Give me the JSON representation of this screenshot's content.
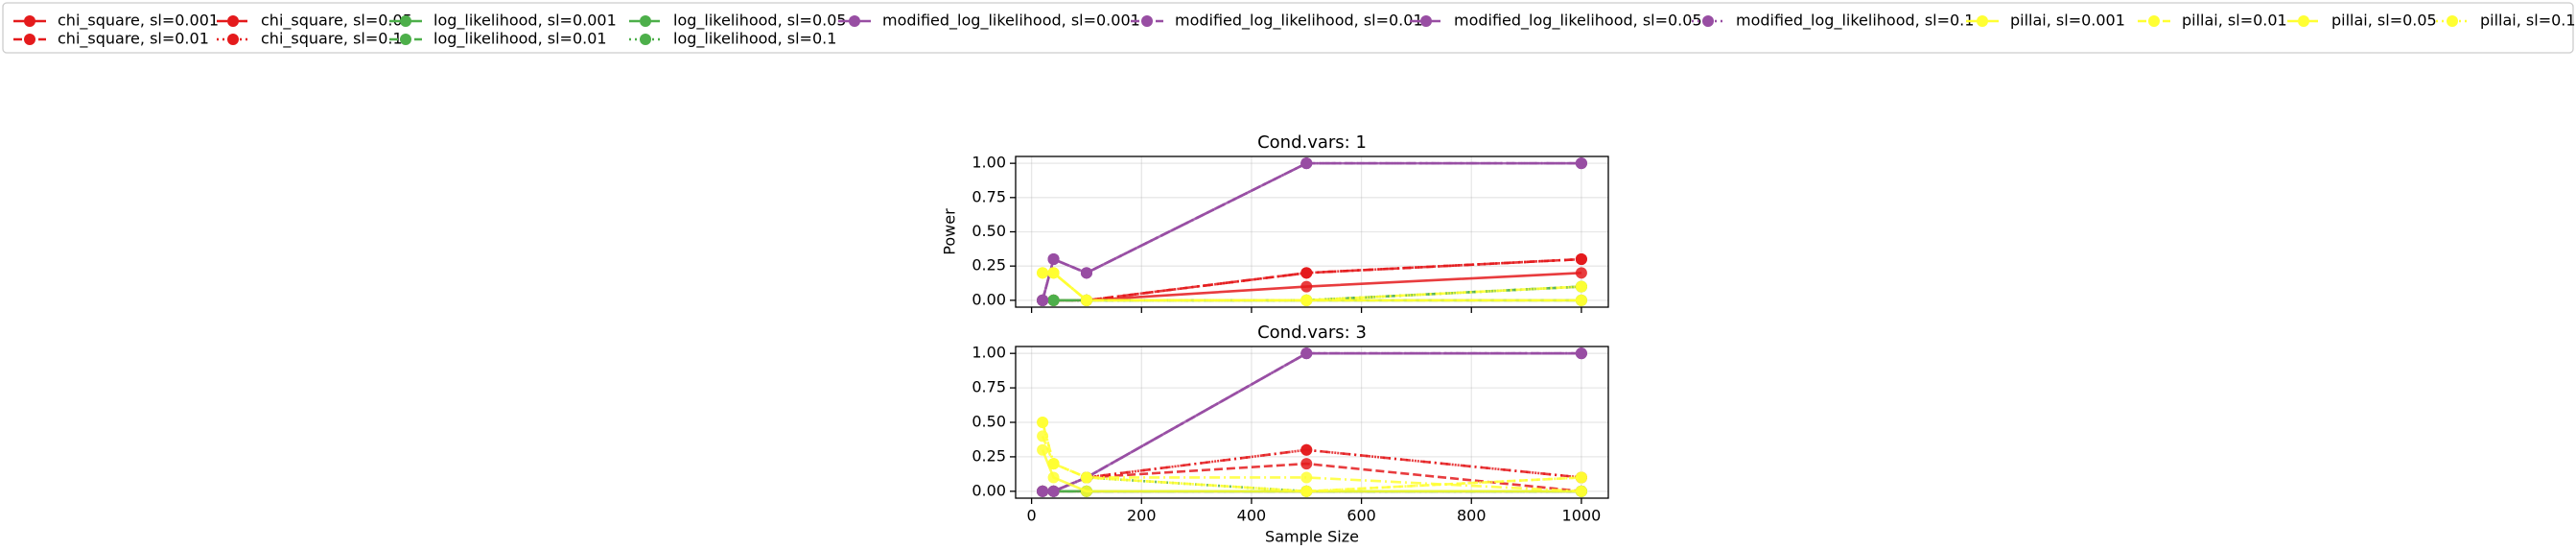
{
  "chart_data": [
    {
      "type": "line",
      "title": "Cond.vars: 1",
      "ylabel": "Power",
      "x": [
        20,
        40,
        100,
        500,
        1000
      ],
      "xlim": [
        -29,
        1049
      ],
      "ylim": [
        -0.05,
        1.05
      ],
      "xticks": [
        0,
        200,
        400,
        600,
        800,
        1000
      ],
      "show_xtick_labels": false,
      "yticks": [
        {
          "value": 0,
          "label": "0.00"
        },
        {
          "value": 0.25,
          "label": "0.25"
        },
        {
          "value": 0.5,
          "label": "0.50"
        },
        {
          "value": 0.75,
          "label": "0.75"
        },
        {
          "value": 1,
          "label": "1.00"
        }
      ],
      "grid": true,
      "series": [
        {
          "name": "chi_square, sl=0.001",
          "color": "#e41a1c",
          "linestyle": "solid",
          "values": [
            0,
            0,
            0,
            0.1,
            0.2
          ]
        },
        {
          "name": "chi_square, sl=0.01",
          "color": "#e41a1c",
          "linestyle": "dashed",
          "values": [
            0,
            0,
            0,
            0.2,
            0.3
          ]
        },
        {
          "name": "chi_square, sl=0.05",
          "color": "#e41a1c",
          "linestyle": "dashdot",
          "values": [
            0,
            0,
            0,
            0.2,
            0.3
          ]
        },
        {
          "name": "chi_square, sl=0.1",
          "color": "#e41a1c",
          "linestyle": "dotted",
          "values": [
            0,
            0,
            0,
            0.2,
            0.3
          ]
        },
        {
          "name": "log_likelihood, sl=0.001",
          "color": "#4daf4a",
          "linestyle": "solid",
          "values": [
            0,
            0,
            0,
            0,
            0
          ]
        },
        {
          "name": "log_likelihood, sl=0.01",
          "color": "#4daf4a",
          "linestyle": "dashed",
          "values": [
            0,
            0,
            0,
            0,
            0
          ]
        },
        {
          "name": "log_likelihood, sl=0.05",
          "color": "#4daf4a",
          "linestyle": "dashdot",
          "values": [
            0,
            0,
            0,
            0,
            0.1
          ]
        },
        {
          "name": "log_likelihood, sl=0.1",
          "color": "#4daf4a",
          "linestyle": "dotted",
          "values": [
            0,
            0,
            0,
            0,
            0.1
          ]
        },
        {
          "name": "modified_log_likelihood, sl=0.001",
          "color": "#984ea3",
          "linestyle": "solid",
          "values": [
            0,
            0.3,
            0.2,
            1,
            1
          ]
        },
        {
          "name": "modified_log_likelihood, sl=0.01",
          "color": "#984ea3",
          "linestyle": "dashed",
          "values": [
            0,
            0.3,
            0.2,
            1,
            1
          ]
        },
        {
          "name": "modified_log_likelihood, sl=0.05",
          "color": "#984ea3",
          "linestyle": "dashdot",
          "values": [
            0,
            0.3,
            0.2,
            1,
            1
          ]
        },
        {
          "name": "modified_log_likelihood, sl=0.1",
          "color": "#984ea3",
          "linestyle": "dotted",
          "values": [
            0,
            0.3,
            0.2,
            1,
            1
          ]
        },
        {
          "name": "pillai, sl=0.001",
          "color": "#ffff33",
          "linestyle": "solid",
          "values": [
            0.2,
            0.2,
            0,
            0,
            0
          ]
        },
        {
          "name": "pillai, sl=0.01",
          "color": "#ffff33",
          "linestyle": "dashed",
          "values": [
            0.2,
            0.2,
            0,
            0,
            0
          ]
        },
        {
          "name": "pillai, sl=0.05",
          "color": "#ffff33",
          "linestyle": "dashdot",
          "values": [
            0.2,
            0.2,
            0,
            0,
            0.1
          ]
        },
        {
          "name": "pillai, sl=0.1",
          "color": "#ffff33",
          "linestyle": "dotted",
          "values": [
            0.2,
            0.2,
            0,
            0,
            0.1
          ]
        }
      ]
    },
    {
      "type": "line",
      "title": "Cond.vars: 3",
      "xlabel": "Sample Size",
      "x": [
        20,
        40,
        100,
        500,
        1000
      ],
      "xlim": [
        -29,
        1049
      ],
      "ylim": [
        -0.05,
        1.05
      ],
      "xticks": [
        0,
        200,
        400,
        600,
        800,
        1000
      ],
      "show_xtick_labels": true,
      "yticks": [
        {
          "value": 0,
          "label": "0.00"
        },
        {
          "value": 0.25,
          "label": "0.25"
        },
        {
          "value": 0.5,
          "label": "0.50"
        },
        {
          "value": 0.75,
          "label": "0.75"
        },
        {
          "value": 1,
          "label": "1.00"
        }
      ],
      "grid": true,
      "series": [
        {
          "name": "chi_square, sl=0.001",
          "color": "#e41a1c",
          "linestyle": "solid",
          "values": [
            0,
            0,
            0,
            0,
            0
          ]
        },
        {
          "name": "chi_square, sl=0.01",
          "color": "#e41a1c",
          "linestyle": "dashed",
          "values": [
            0,
            0,
            0.1,
            0.2,
            0
          ]
        },
        {
          "name": "chi_square, sl=0.05",
          "color": "#e41a1c",
          "linestyle": "dashdot",
          "values": [
            0,
            0,
            0.1,
            0.3,
            0.1
          ]
        },
        {
          "name": "chi_square, sl=0.1",
          "color": "#e41a1c",
          "linestyle": "dotted",
          "values": [
            0,
            0,
            0.1,
            0.3,
            0.1
          ]
        },
        {
          "name": "log_likelihood, sl=0.001",
          "color": "#4daf4a",
          "linestyle": "solid",
          "values": [
            0,
            0,
            0,
            0,
            0
          ]
        },
        {
          "name": "log_likelihood, sl=0.01",
          "color": "#4daf4a",
          "linestyle": "dashed",
          "values": [
            0,
            0,
            0,
            0,
            0
          ]
        },
        {
          "name": "log_likelihood, sl=0.05",
          "color": "#4daf4a",
          "linestyle": "dashdot",
          "values": [
            0,
            0,
            0,
            0,
            0
          ]
        },
        {
          "name": "log_likelihood, sl=0.1",
          "color": "#4daf4a",
          "linestyle": "dotted",
          "values": [
            0,
            0,
            0.1,
            0,
            0
          ]
        },
        {
          "name": "modified_log_likelihood, sl=0.001",
          "color": "#984ea3",
          "linestyle": "solid",
          "values": [
            0,
            0,
            0.1,
            1,
            1
          ]
        },
        {
          "name": "modified_log_likelihood, sl=0.01",
          "color": "#984ea3",
          "linestyle": "dashed",
          "values": [
            0,
            0,
            0.1,
            1,
            1
          ]
        },
        {
          "name": "modified_log_likelihood, sl=0.05",
          "color": "#984ea3",
          "linestyle": "dashdot",
          "values": [
            0,
            0,
            0.1,
            1,
            1
          ]
        },
        {
          "name": "modified_log_likelihood, sl=0.1",
          "color": "#984ea3",
          "linestyle": "dotted",
          "values": [
            0,
            0,
            0.1,
            1,
            1
          ]
        },
        {
          "name": "pillai, sl=0.001",
          "color": "#ffff33",
          "linestyle": "solid",
          "values": [
            0.3,
            0.1,
            0,
            0,
            0
          ]
        },
        {
          "name": "pillai, sl=0.01",
          "color": "#ffff33",
          "linestyle": "dashed",
          "values": [
            0.4,
            0.2,
            0.1,
            0,
            0.1
          ]
        },
        {
          "name": "pillai, sl=0.05",
          "color": "#ffff33",
          "linestyle": "dashdot",
          "values": [
            0.5,
            0.2,
            0.1,
            0.1,
            0
          ]
        },
        {
          "name": "pillai, sl=0.1",
          "color": "#ffff33",
          "linestyle": "dotted",
          "values": [
            0.5,
            0.2,
            0.1,
            0,
            0.1
          ]
        }
      ]
    }
  ]
}
